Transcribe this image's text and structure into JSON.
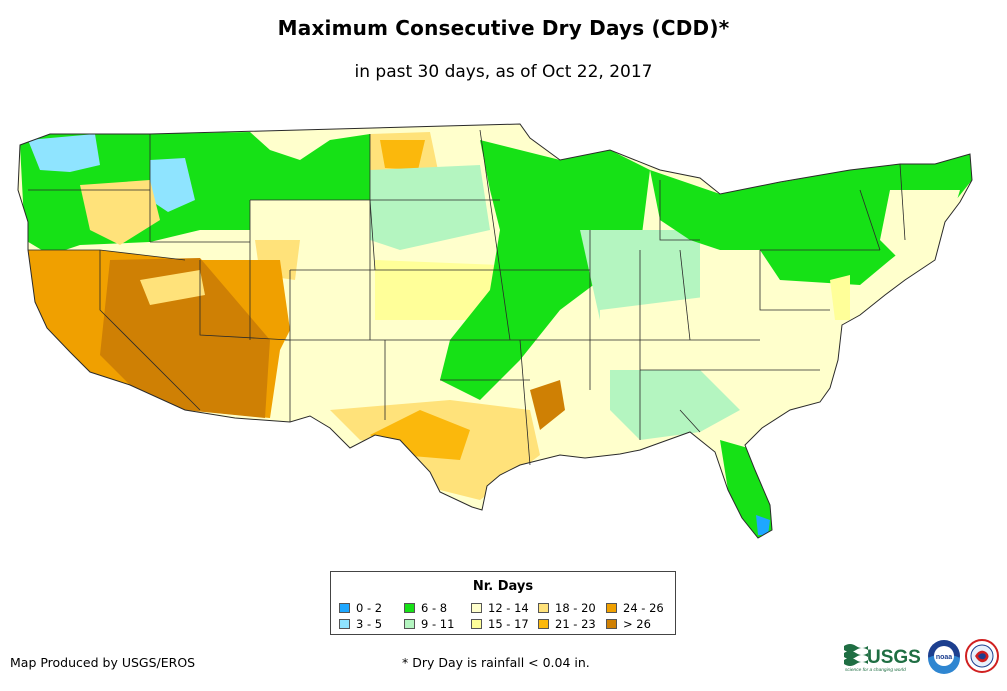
{
  "title": "Maximum Consecutive Dry Days (CDD)*",
  "subtitle": "in past 30 days, as of Oct 22, 2017",
  "legend": {
    "title": "Nr. Days",
    "items": [
      {
        "label": "0 - 2",
        "color": "#1ea7ff"
      },
      {
        "label": "3 - 5",
        "color": "#8fe4ff"
      },
      {
        "label": "6 - 8",
        "color": "#16e116"
      },
      {
        "label": "9 - 11",
        "color": "#b4f5c0"
      },
      {
        "label": "12 - 14",
        "color": "#ffffcc"
      },
      {
        "label": "15 - 17",
        "color": "#ffff99"
      },
      {
        "label": "18 - 20",
        "color": "#ffe27a"
      },
      {
        "label": "21 - 23",
        "color": "#fbb80c"
      },
      {
        "label": "24 - 26",
        "color": "#f0a000"
      },
      {
        "label": "> 26",
        "color": "#cf8004"
      }
    ]
  },
  "footer": {
    "credit": "Map Produced by USGS/EROS",
    "note": "* Dry Day is rainfall < 0.04 in."
  },
  "logos": {
    "usgs": "USGS",
    "usgs_tagline": "science for a changing world",
    "noaa": "noaa"
  }
}
